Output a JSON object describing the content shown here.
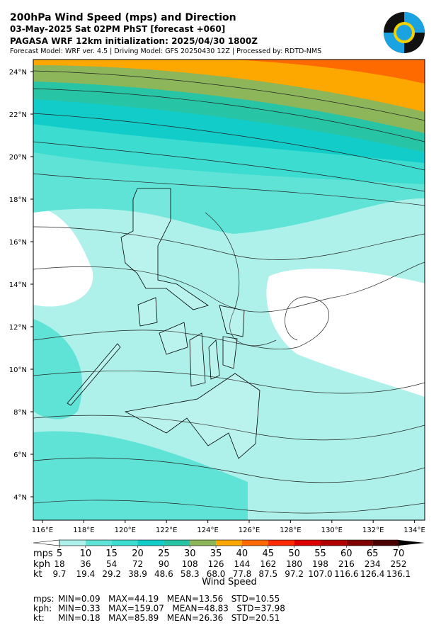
{
  "header": {
    "title": "200hPa Wind Speed (mps) and Direction",
    "line2": "03-May-2025 Sat 02PM PhST [forecast +060]",
    "line3": "PAGASA WRF 12km initialization: 2025/04/30 1800Z",
    "line4": "Forecast Model: WRF ver. 4.5 | Driving Model: GFS 20250430 12Z | Processed by: RDTD-NMS"
  },
  "map": {
    "lat_labels": [
      "24°N",
      "22°N",
      "20°N",
      "18°N",
      "16°N",
      "14°N",
      "12°N",
      "10°N",
      "8°N",
      "6°N",
      "4°N"
    ],
    "lon_labels": [
      "116°E",
      "118°E",
      "120°E",
      "122°E",
      "124°E",
      "126°E",
      "128°E",
      "130°E",
      "132°E",
      "134°E"
    ]
  },
  "colorbar": {
    "colors": [
      "#ffffff",
      "#aef1ea",
      "#5fe3d6",
      "#3cdcd0",
      "#12ccc9",
      "#27c4a6",
      "#8db55a",
      "#fca800",
      "#ff6a00",
      "#ff2a00",
      "#dd0000",
      "#b00000",
      "#7e0000",
      "#4a0000",
      "#000000"
    ],
    "row_labels": [
      "mps",
      "kph",
      "kt"
    ],
    "mps": [
      5,
      10,
      15,
      20,
      25,
      30,
      35,
      40,
      45,
      50,
      55,
      60,
      65,
      70
    ],
    "kph": [
      18,
      36,
      54,
      72,
      90,
      108,
      126,
      144,
      162,
      180,
      198,
      216,
      234,
      252
    ],
    "kt": [
      9.7,
      19.4,
      29.2,
      38.9,
      48.6,
      58.3,
      {
        "value": 68,
        "label": "68.0"
      },
      77.8,
      87.5,
      97.2,
      {
        "value": 107,
        "label": "107.0"
      },
      116.6,
      126.4,
      136.1
    ],
    "label": "Wind Speed"
  },
  "stats": [
    {
      "unit": "mps:",
      "text": "MIN=0.09   MAX=44.19   MEAN=13.56   STD=10.55"
    },
    {
      "unit": "kph:",
      "text": "MIN=0.33   MAX=159.07   MEAN=48.83   STD=37.98"
    },
    {
      "unit": "kt:",
      "text": "MIN=0.18   MAX=85.89   MEAN=26.36   STD=20.51"
    }
  ]
}
